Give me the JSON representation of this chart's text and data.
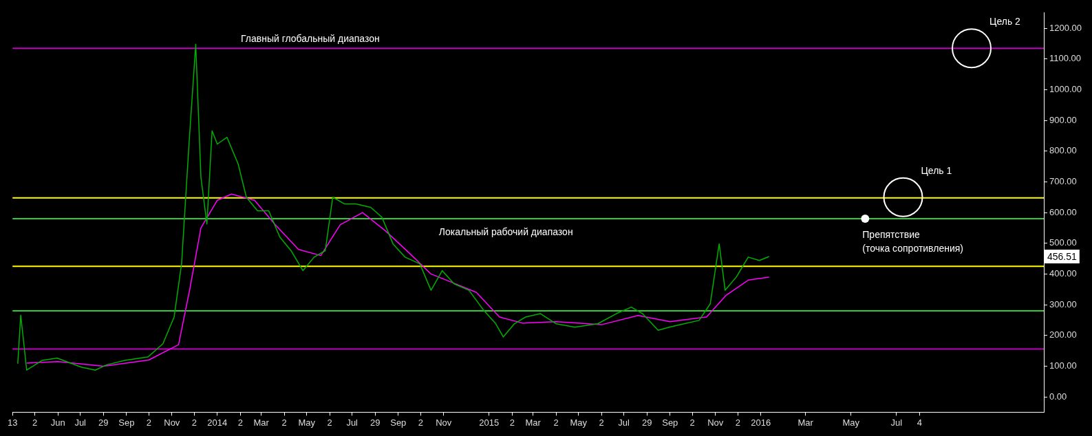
{
  "chart_data": {
    "type": "line",
    "x": [
      "2013-04-08",
      "2013-04-12",
      "2013-04-20",
      "2013-05-11",
      "2013-05-31",
      "2013-07-02",
      "2013-07-21",
      "2013-08-05",
      "2013-08-30",
      "2013-09-30",
      "2013-10-20",
      "2013-11-04",
      "2013-11-14",
      "2013-11-24",
      "2013-12-03",
      "2013-12-10",
      "2013-12-18",
      "2013-12-25",
      "2014-01-01",
      "2014-01-14",
      "2014-01-29",
      "2014-02-09",
      "2014-02-24",
      "2014-03-11",
      "2014-03-26",
      "2014-04-10",
      "2014-04-26",
      "2014-05-11",
      "2014-05-26",
      "2014-06-05",
      "2014-06-21",
      "2014-07-06",
      "2014-07-26",
      "2014-08-10",
      "2014-08-25",
      "2014-09-10",
      "2014-09-30",
      "2014-10-15",
      "2014-10-30",
      "2014-11-15",
      "2014-12-05",
      "2014-12-25",
      "2015-01-10",
      "2015-01-20",
      "2015-02-04",
      "2015-02-19",
      "2015-03-11",
      "2015-04-01",
      "2015-04-26",
      "2015-05-27",
      "2015-06-21",
      "2015-07-11",
      "2015-07-26",
      "2015-08-16",
      "2015-08-31",
      "2015-09-20",
      "2015-10-10",
      "2015-10-25",
      "2015-11-06",
      "2015-11-14",
      "2015-11-29",
      "2015-12-15",
      "2015-12-30",
      "2016-01-12"
    ],
    "series": [
      {
        "color": "#00b000",
        "values": [
          108,
          266,
          87,
          119,
          126,
          97,
          87,
          104,
          119,
          130,
          173,
          260,
          433,
          823,
          1148,
          715,
          563,
          866,
          823,
          845,
          758,
          650,
          606,
          606,
          520,
          476,
          411,
          455,
          476,
          650,
          628,
          628,
          617,
          585,
          498,
          455,
          433,
          347,
          411,
          368,
          347,
          281,
          238,
          195,
          238,
          260,
          271,
          238,
          227,
          238,
          271,
          292,
          271,
          217,
          227,
          238,
          249,
          303,
          498,
          347,
          390,
          455,
          444,
          457
        ]
      },
      {
        "color": "#ff00ff",
        "x": [
          "2013-04-20",
          "2013-06-01",
          "2013-08-01",
          "2013-10-01",
          "2013-11-10",
          "2013-11-25",
          "2013-12-10",
          "2014-01-01",
          "2014-01-20",
          "2014-02-20",
          "2014-03-20",
          "2014-04-20",
          "2014-05-20",
          "2014-06-15",
          "2014-07-15",
          "2014-08-15",
          "2014-09-15",
          "2014-10-15",
          "2014-11-15",
          "2014-12-15",
          "2015-01-15",
          "2015-02-15",
          "2015-04-01",
          "2015-06-01",
          "2015-07-20",
          "2015-09-01",
          "2015-10-20",
          "2015-11-15",
          "2015-12-15",
          "2016-01-12"
        ],
        "values": [
          110,
          115,
          100,
          120,
          170,
          350,
          550,
          640,
          660,
          640,
          560,
          480,
          460,
          560,
          600,
          540,
          470,
          400,
          370,
          340,
          260,
          240,
          245,
          235,
          265,
          245,
          260,
          330,
          380,
          390
        ]
      }
    ],
    "xlim": [
      "2013-04-01",
      "2017-01-15"
    ],
    "xticks": [
      {
        "value": "2013-04-01",
        "label": "13"
      },
      {
        "value": "2013-05-01",
        "label": "2"
      },
      {
        "value": "2013-06-01",
        "label": "Jun"
      },
      {
        "value": "2013-07-01",
        "label": "Jul"
      },
      {
        "value": "2013-08-01",
        "label": "29"
      },
      {
        "value": "2013-09-01",
        "label": "Sep"
      },
      {
        "value": "2013-10-01",
        "label": "2"
      },
      {
        "value": "2013-11-01",
        "label": "Nov"
      },
      {
        "value": "2013-12-01",
        "label": "2"
      },
      {
        "value": "2014-01-01",
        "label": "2014"
      },
      {
        "value": "2014-02-01",
        "label": "2"
      },
      {
        "value": "2014-03-01",
        "label": "Mar"
      },
      {
        "value": "2014-04-01",
        "label": "2"
      },
      {
        "value": "2014-05-01",
        "label": "May"
      },
      {
        "value": "2014-06-01",
        "label": "2"
      },
      {
        "value": "2014-07-01",
        "label": "Jul"
      },
      {
        "value": "2014-08-01",
        "label": "29"
      },
      {
        "value": "2014-09-01",
        "label": "Sep"
      },
      {
        "value": "2014-10-01",
        "label": "2"
      },
      {
        "value": "2014-11-01",
        "label": "Nov"
      },
      {
        "value": "2015-01-01",
        "label": "2015"
      },
      {
        "value": "2015-02-01",
        "label": "2"
      },
      {
        "value": "2015-03-01",
        "label": "Mar"
      },
      {
        "value": "2015-04-01",
        "label": "2"
      },
      {
        "value": "2015-05-01",
        "label": "May"
      },
      {
        "value": "2015-06-01",
        "label": "2"
      },
      {
        "value": "2015-07-01",
        "label": "Jul"
      },
      {
        "value": "2015-08-01",
        "label": "29"
      },
      {
        "value": "2015-09-01",
        "label": "Sep"
      },
      {
        "value": "2015-10-01",
        "label": "2"
      },
      {
        "value": "2015-11-01",
        "label": "Nov"
      },
      {
        "value": "2015-12-01",
        "label": "2"
      },
      {
        "value": "2016-01-01",
        "label": "2016"
      },
      {
        "value": "2016-03-01",
        "label": "Mar"
      },
      {
        "value": "2016-05-01",
        "label": "May"
      },
      {
        "value": "2016-07-01",
        "label": "Jul"
      },
      {
        "value": "2016-08-01",
        "label": "4"
      }
    ],
    "ylim": [
      -50,
      1250
    ],
    "yticks": [
      {
        "value": 0,
        "label": "0.00"
      },
      {
        "value": 100,
        "label": "100.00"
      },
      {
        "value": 200,
        "label": "200.00"
      },
      {
        "value": 300,
        "label": "300.00"
      },
      {
        "value": 400,
        "label": "400.00"
      },
      {
        "value": 500,
        "label": "500.00"
      },
      {
        "value": 600,
        "label": "600.00"
      },
      {
        "value": 700,
        "label": "700.00"
      },
      {
        "value": 800,
        "label": "800.00"
      },
      {
        "value": 900,
        "label": "900.00"
      },
      {
        "value": 1000,
        "label": "1000.00"
      },
      {
        "value": 1100,
        "label": "1100.00"
      },
      {
        "value": 1200,
        "label": "1200.00"
      }
    ],
    "ref_lines": [
      {
        "axis": "y",
        "value": 1135,
        "color": "#c000c0"
      },
      {
        "axis": "y",
        "value": 648,
        "color": "#ffff00"
      },
      {
        "axis": "y",
        "value": 580,
        "color": "#33cc33"
      },
      {
        "axis": "y",
        "value": 425,
        "color": "#ffff00"
      },
      {
        "axis": "y",
        "value": 280,
        "color": "#33cc33"
      },
      {
        "axis": "y",
        "value": 156,
        "color": "#c000c0"
      }
    ],
    "annotations": [
      {
        "text": "Главный глобальный диапазон",
        "x": "2014-01-27",
        "y": 1135
      },
      {
        "text": "Локальный рабочий диапазон",
        "x": "2014-10-20",
        "y": 580
      },
      {
        "text": "Цель 1",
        "x": "2016-07-10",
        "y": 650
      },
      {
        "text": "Цель 2",
        "x": "2016-10-10",
        "y": 1135
      },
      {
        "text": "Препятствие\n(точка сопротивления)",
        "x": "2016-05-20",
        "y": 580
      },
      "456.51"
    ],
    "grid": false,
    "legend": false,
    "marker": "none",
    "line_style": "solid"
  }
}
